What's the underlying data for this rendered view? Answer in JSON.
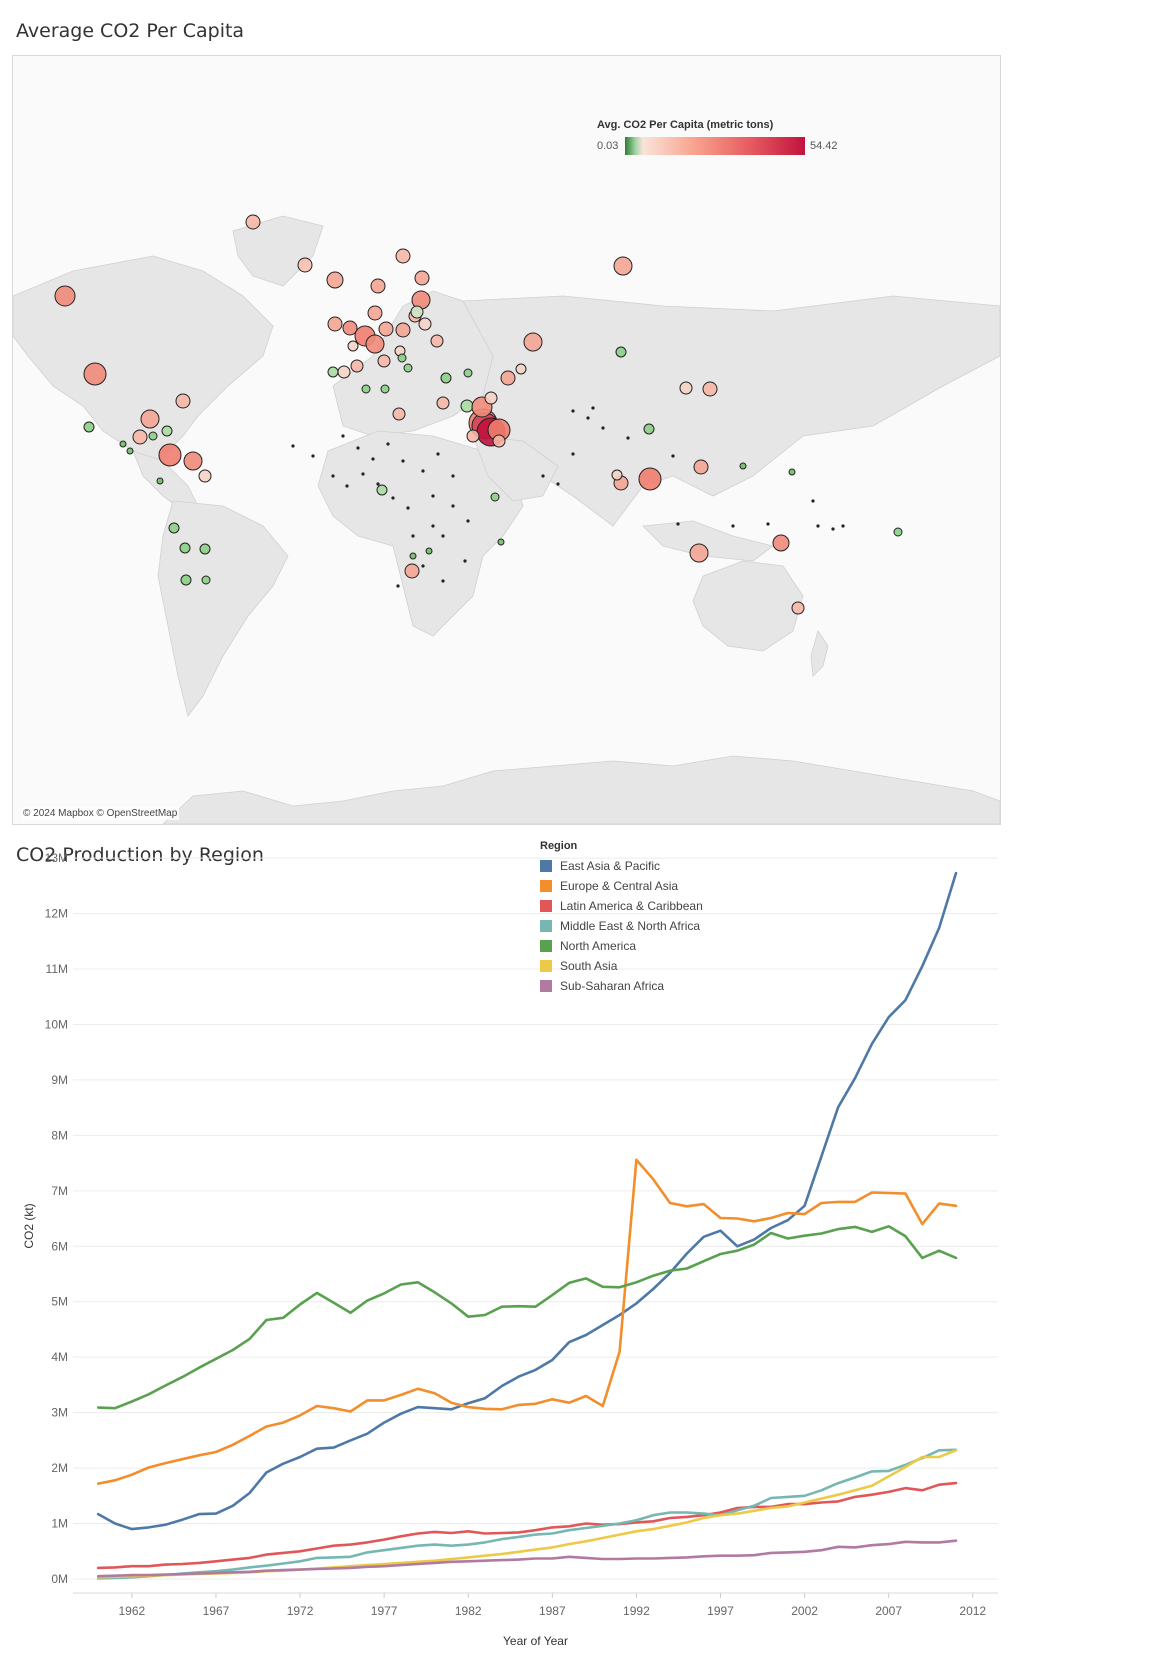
{
  "map_title": "Average CO2 Per Capita",
  "line_title": "CO2 Production by Region",
  "map": {
    "attribution": "© 2024 Mapbox © OpenStreetMap",
    "legend_title": "Avg. CO2 Per Capita (metric tons)",
    "legend_min": "0.03",
    "legend_max": "54.42",
    "colors": {
      "low": "#2e7d32",
      "mid": "#fbe3d9",
      "high": "#c0133d"
    }
  },
  "colors": {
    "East Asia & Pacific": "#4e79a7",
    "Europe & Central Asia": "#f28e2b",
    "Latin America & Caribbean": "#e15759",
    "Middle East & North Africa": "#76b7b2",
    "North America": "#59a14f",
    "South Asia": "#edc948",
    "Sub-Saharan Africa": "#b07aa1"
  },
  "chart_data": [
    {
      "type": "map",
      "title": "Average CO2 Per Capita",
      "legend_title": "Avg. CO2 Per Capita (metric tons)",
      "color_range": [
        0.03,
        54.42
      ]
    },
    {
      "type": "line",
      "title": "CO2 Production by Region",
      "xlabel": "Year of Year",
      "ylabel": "CO2 (kt)",
      "legend_title": "Region",
      "x_ticks": [
        "1962",
        "1967",
        "1972",
        "1977",
        "1982",
        "1987",
        "1992",
        "1997",
        "2002",
        "2007",
        "2012"
      ],
      "y_ticks": [
        "0M",
        "1M",
        "2M",
        "3M",
        "4M",
        "5M",
        "6M",
        "7M",
        "8M",
        "9M",
        "10M",
        "11M",
        "12M",
        "13M"
      ],
      "xlim": [
        1958.5,
        2013.5
      ],
      "ylim": [
        0,
        13.2
      ],
      "x": [
        1960,
        1961,
        1962,
        1963,
        1964,
        1965,
        1966,
        1967,
        1968,
        1969,
        1970,
        1971,
        1972,
        1973,
        1974,
        1975,
        1976,
        1977,
        1978,
        1979,
        1980,
        1981,
        1982,
        1983,
        1984,
        1985,
        1986,
        1987,
        1988,
        1989,
        1990,
        1991,
        1992,
        1993,
        1994,
        1995,
        1996,
        1997,
        1998,
        1999,
        2000,
        2001,
        2002,
        2003,
        2004,
        2005,
        2006,
        2007,
        2008,
        2009,
        2010,
        2011
      ],
      "series": [
        {
          "name": "East Asia & Pacific",
          "values": [
            1.17,
            1.0,
            0.9,
            0.93,
            0.98,
            1.07,
            1.17,
            1.18,
            1.32,
            1.55,
            1.92,
            2.08,
            2.2,
            2.35,
            2.37,
            2.5,
            2.62,
            2.82,
            2.98,
            3.1,
            3.08,
            3.06,
            3.17,
            3.26,
            3.48,
            3.65,
            3.77,
            3.95,
            4.27,
            4.4,
            4.58,
            4.76,
            4.97,
            5.23,
            5.52,
            5.87,
            6.17,
            6.28,
            6.0,
            6.12,
            6.33,
            6.47,
            6.73,
            7.62,
            8.51,
            9.03,
            9.65,
            10.13,
            10.44,
            11.05,
            11.74,
            12.73
          ]
        },
        {
          "name": "Europe & Central Asia",
          "values": [
            1.72,
            1.78,
            1.88,
            2.01,
            2.09,
            2.16,
            2.23,
            2.29,
            2.42,
            2.58,
            2.75,
            2.82,
            2.95,
            3.12,
            3.08,
            3.02,
            3.22,
            3.22,
            3.32,
            3.43,
            3.35,
            3.18,
            3.1,
            3.07,
            3.06,
            3.14,
            3.16,
            3.24,
            3.18,
            3.3,
            3.12,
            4.1,
            7.56,
            7.21,
            6.78,
            6.72,
            6.76,
            6.51,
            6.5,
            6.45,
            6.51,
            6.6,
            6.58,
            6.78,
            6.8,
            6.8,
            6.97,
            6.96,
            6.95,
            6.4,
            6.77,
            6.73
          ]
        },
        {
          "name": "Latin America & Caribbean",
          "values": [
            0.2,
            0.21,
            0.23,
            0.23,
            0.26,
            0.27,
            0.29,
            0.32,
            0.35,
            0.38,
            0.44,
            0.47,
            0.5,
            0.55,
            0.6,
            0.62,
            0.66,
            0.71,
            0.77,
            0.82,
            0.85,
            0.83,
            0.86,
            0.82,
            0.83,
            0.84,
            0.88,
            0.93,
            0.95,
            1.0,
            0.98,
            0.99,
            1.02,
            1.04,
            1.1,
            1.12,
            1.15,
            1.2,
            1.28,
            1.3,
            1.3,
            1.35,
            1.35,
            1.38,
            1.4,
            1.48,
            1.52,
            1.57,
            1.64,
            1.6,
            1.7,
            1.73
          ]
        },
        {
          "name": "Middle East & North Africa",
          "values": [
            0.01,
            0.02,
            0.03,
            0.05,
            0.07,
            0.1,
            0.12,
            0.14,
            0.17,
            0.21,
            0.24,
            0.28,
            0.32,
            0.38,
            0.39,
            0.4,
            0.48,
            0.52,
            0.56,
            0.6,
            0.62,
            0.6,
            0.62,
            0.66,
            0.72,
            0.76,
            0.8,
            0.82,
            0.88,
            0.92,
            0.96,
            1.0,
            1.06,
            1.15,
            1.2,
            1.2,
            1.18,
            1.15,
            1.24,
            1.32,
            1.46,
            1.48,
            1.5,
            1.6,
            1.73,
            1.83,
            1.94,
            1.95,
            2.06,
            2.18,
            2.32,
            2.33
          ]
        },
        {
          "name": "North America",
          "values": [
            3.09,
            3.08,
            3.2,
            3.33,
            3.49,
            3.64,
            3.81,
            3.97,
            4.13,
            4.33,
            4.67,
            4.71,
            4.95,
            5.16,
            4.98,
            4.8,
            5.02,
            5.15,
            5.31,
            5.35,
            5.17,
            4.97,
            4.73,
            4.76,
            4.91,
            4.92,
            4.91,
            5.12,
            5.34,
            5.42,
            5.27,
            5.26,
            5.35,
            5.47,
            5.56,
            5.6,
            5.73,
            5.86,
            5.92,
            6.03,
            6.24,
            6.14,
            6.19,
            6.23,
            6.31,
            6.35,
            6.26,
            6.36,
            6.18,
            5.79,
            5.92,
            5.79
          ]
        },
        {
          "name": "South Asia",
          "values": [
            0.03,
            0.04,
            0.05,
            0.06,
            0.07,
            0.08,
            0.09,
            0.1,
            0.11,
            0.12,
            0.14,
            0.15,
            0.17,
            0.19,
            0.21,
            0.23,
            0.25,
            0.27,
            0.29,
            0.31,
            0.33,
            0.36,
            0.39,
            0.42,
            0.45,
            0.49,
            0.53,
            0.57,
            0.63,
            0.68,
            0.74,
            0.8,
            0.86,
            0.9,
            0.96,
            1.02,
            1.1,
            1.15,
            1.18,
            1.23,
            1.28,
            1.31,
            1.38,
            1.45,
            1.52,
            1.6,
            1.68,
            1.85,
            2.02,
            2.2,
            2.2,
            2.32
          ]
        },
        {
          "name": "Sub-Saharan Africa",
          "values": [
            0.05,
            0.06,
            0.07,
            0.07,
            0.08,
            0.09,
            0.1,
            0.11,
            0.12,
            0.13,
            0.15,
            0.16,
            0.17,
            0.18,
            0.19,
            0.2,
            0.22,
            0.23,
            0.25,
            0.27,
            0.29,
            0.31,
            0.32,
            0.33,
            0.34,
            0.35,
            0.37,
            0.37,
            0.4,
            0.38,
            0.36,
            0.36,
            0.37,
            0.37,
            0.38,
            0.39,
            0.41,
            0.42,
            0.42,
            0.43,
            0.47,
            0.48,
            0.49,
            0.52,
            0.58,
            0.57,
            0.61,
            0.63,
            0.67,
            0.66,
            0.66,
            0.69
          ]
        }
      ]
    }
  ]
}
